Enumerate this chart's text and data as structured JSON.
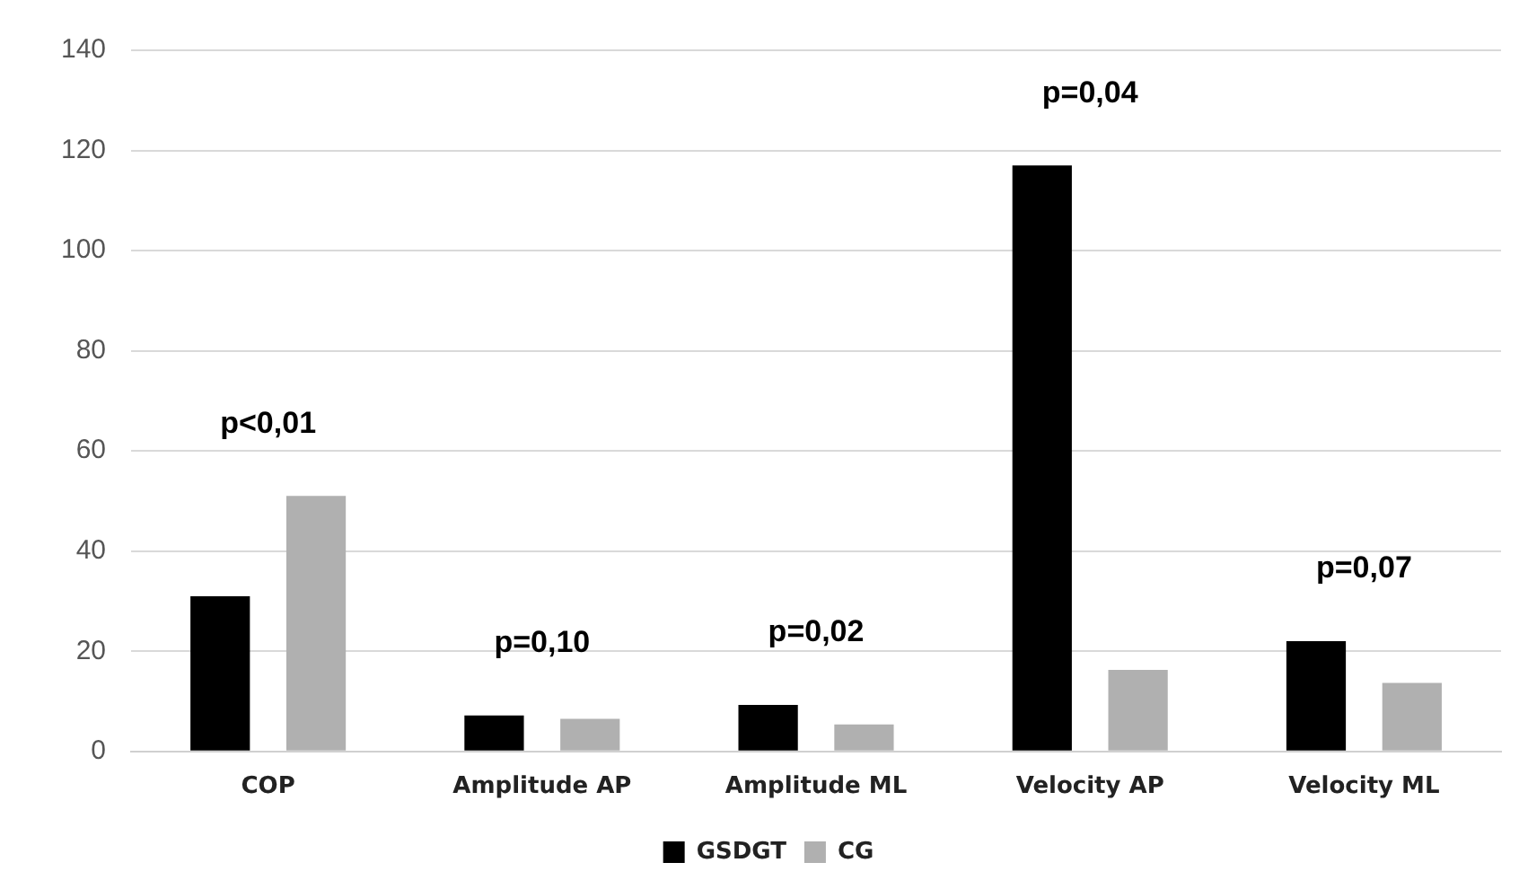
{
  "chart_data": {
    "type": "bar",
    "categories": [
      "COP",
      "Amplitude AP",
      "Amplitude ML",
      "Velocity AP",
      "Velocity ML"
    ],
    "series": [
      {
        "name": "GSDGT",
        "color": "#000000",
        "values": [
          31,
          7.2,
          9.3,
          117,
          22
        ]
      },
      {
        "name": "CG",
        "color": "#b0b0b0",
        "values": [
          51,
          6.5,
          5.4,
          16.3,
          13.7
        ]
      }
    ],
    "ylim": [
      0,
      140
    ],
    "yticks": [
      0,
      20,
      40,
      60,
      80,
      100,
      120,
      140
    ],
    "grid": "y",
    "legend": "bottom",
    "annotations": [
      "p<0,01",
      "p=0,10",
      "p=0,02",
      "p=0,04",
      "p=0,07"
    ]
  }
}
